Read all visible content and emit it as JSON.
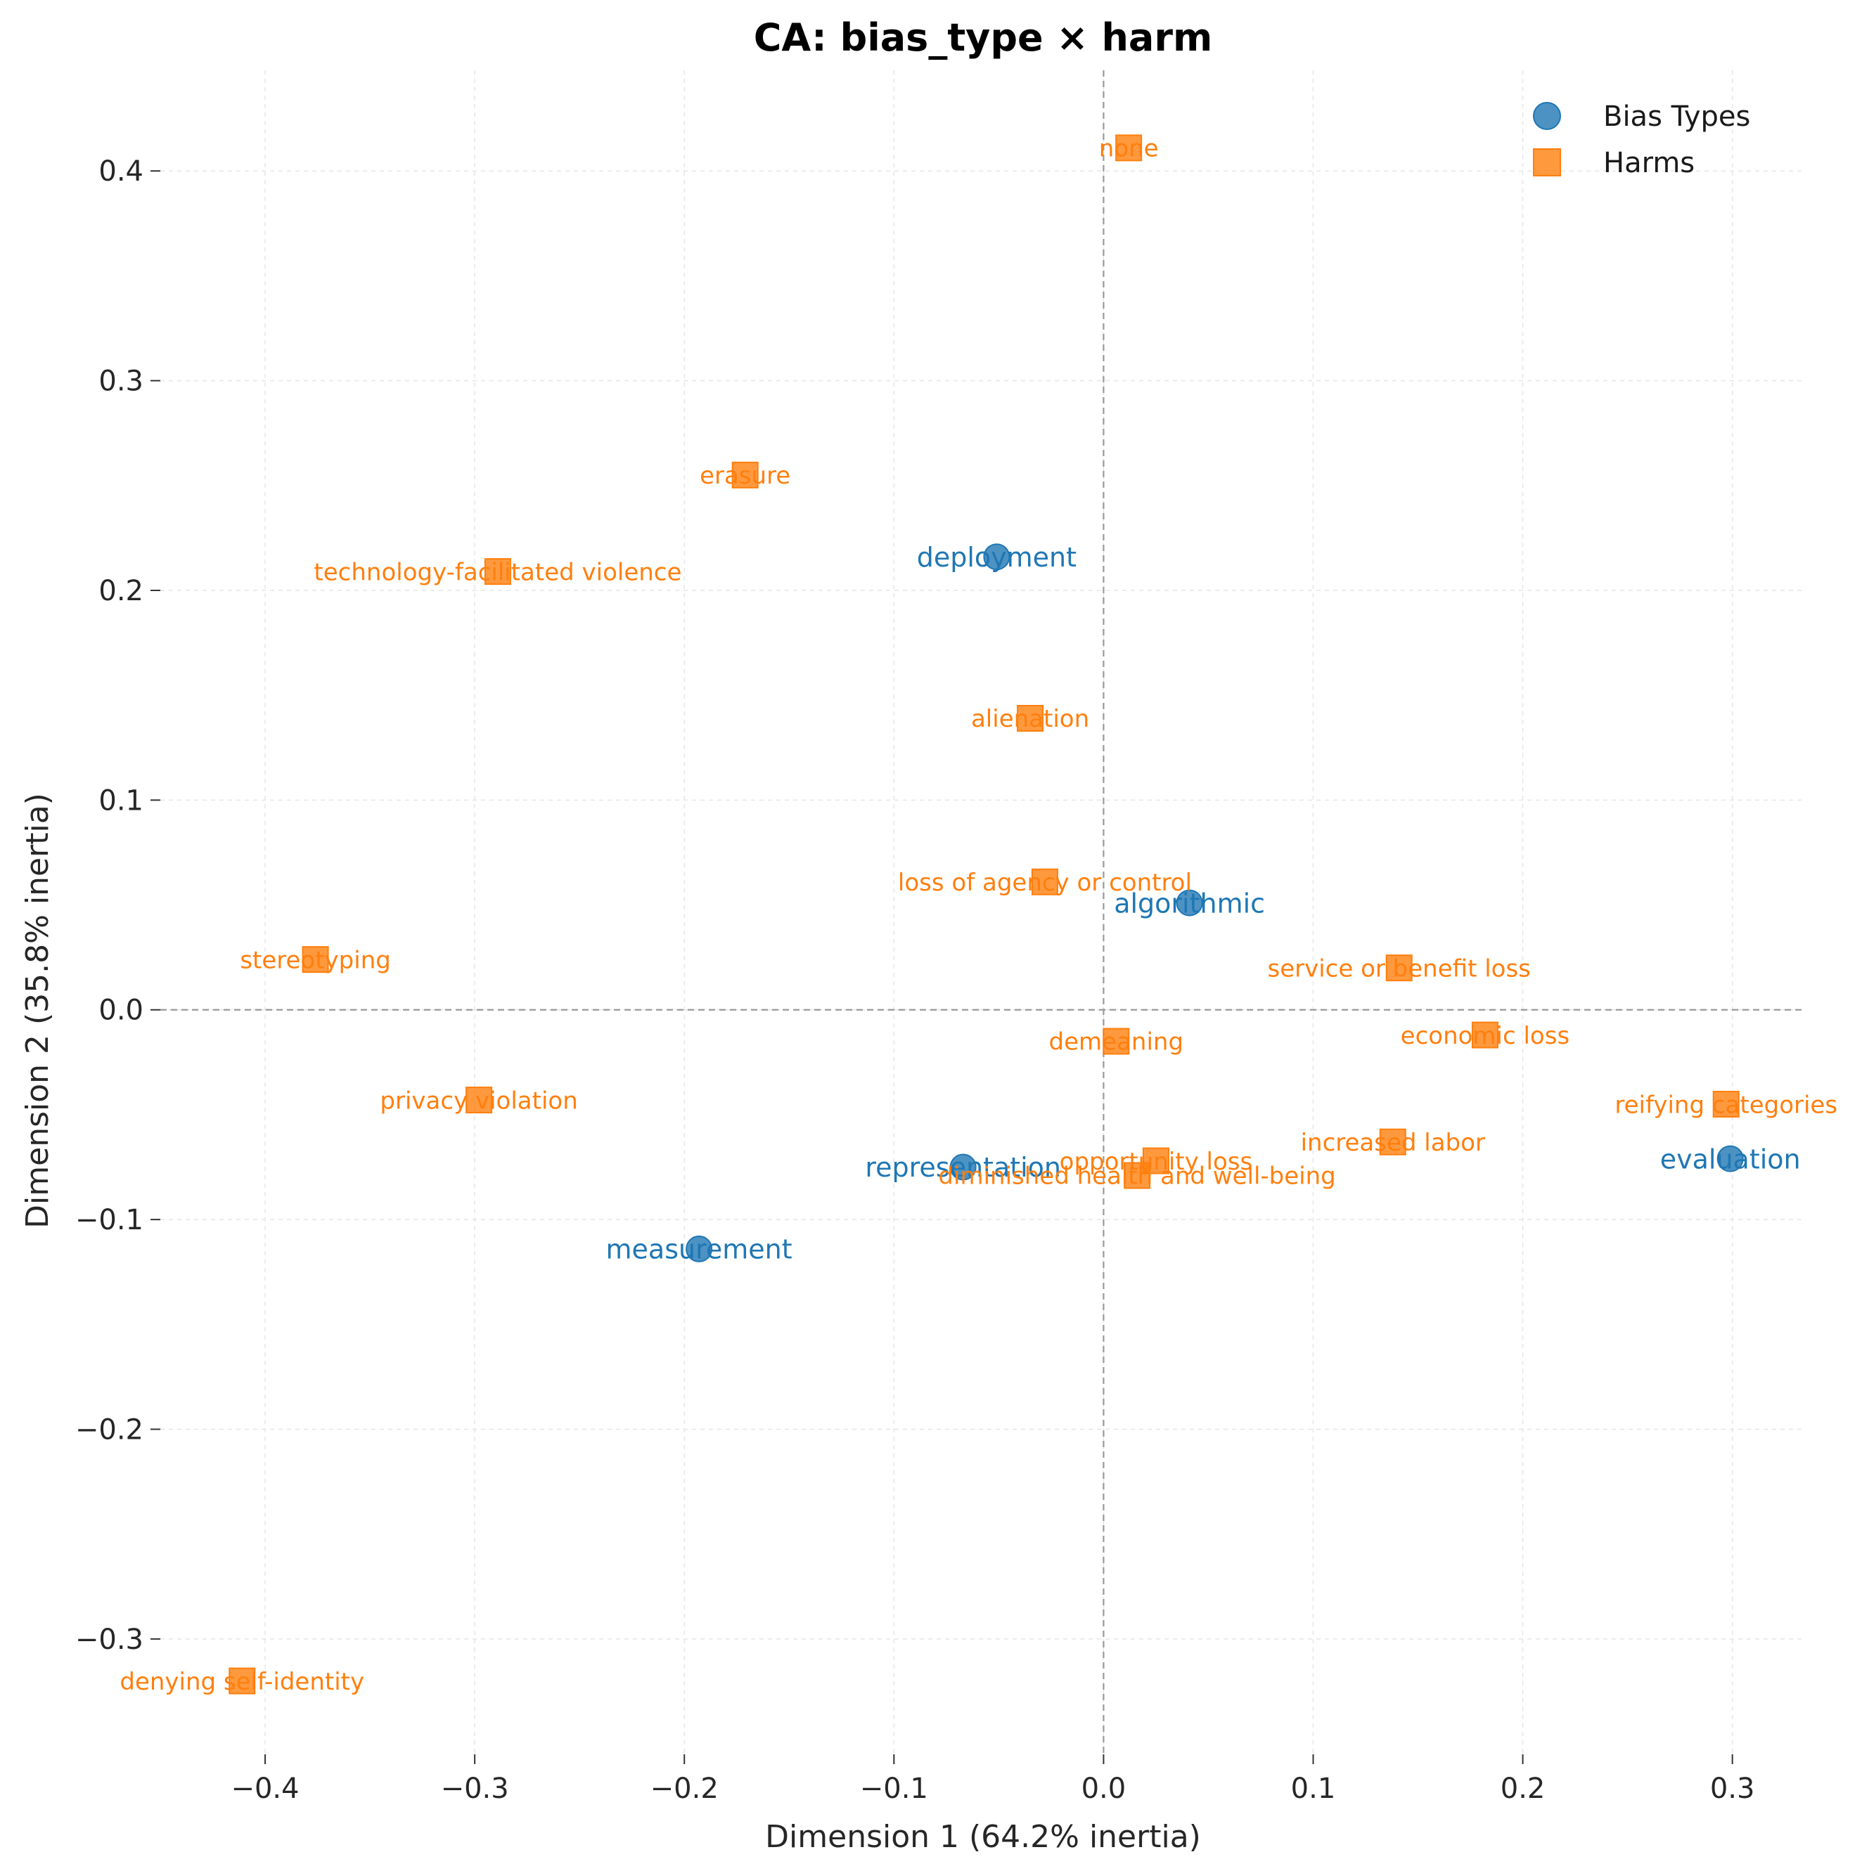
{
  "chart_data": {
    "type": "scatter",
    "title": "CA: bias_type × harm",
    "xlabel": "Dimension 1 (64.2% inertia)",
    "ylabel": "Dimension 2 (35.8% inertia)",
    "xlim": [
      -0.45,
      0.335
    ],
    "ylim": [
      -0.355,
      0.448
    ],
    "xticks": [
      -0.4,
      -0.3,
      -0.2,
      -0.1,
      0.0,
      0.1,
      0.2,
      0.3
    ],
    "xtick_labels": [
      "−0.4",
      "−0.3",
      "−0.2",
      "−0.1",
      "0.0",
      "0.1",
      "0.2",
      "0.3"
    ],
    "yticks": [
      -0.3,
      -0.2,
      -0.1,
      0.0,
      0.1,
      0.2,
      0.3,
      0.4
    ],
    "ytick_labels": [
      "−0.3",
      "−0.2",
      "−0.1",
      "0.0",
      "0.1",
      "0.2",
      "0.3",
      "0.4"
    ],
    "grid": true,
    "reference_lines": {
      "x": 0,
      "y": 0
    },
    "legend_position": "top-right",
    "series": [
      {
        "name": "Bias Types",
        "marker": "circle",
        "color": "#1f77b4",
        "points": [
          {
            "label": "deployment",
            "x": -0.051,
            "y": 0.216
          },
          {
            "label": "algorithmic",
            "x": 0.041,
            "y": 0.051
          },
          {
            "label": "evaluation",
            "x": 0.299,
            "y": -0.071
          },
          {
            "label": "representation",
            "x": -0.067,
            "y": -0.075
          },
          {
            "label": "measurement",
            "x": -0.193,
            "y": -0.114
          }
        ]
      },
      {
        "name": "Harms",
        "marker": "square",
        "color": "#ff7f0e",
        "points": [
          {
            "label": "none",
            "x": 0.012,
            "y": 0.411
          },
          {
            "label": "erasure",
            "x": -0.171,
            "y": 0.255
          },
          {
            "label": "technology-facilitated violence",
            "x": -0.289,
            "y": 0.209
          },
          {
            "label": "alienation",
            "x": -0.035,
            "y": 0.139
          },
          {
            "label": "loss of agency or control",
            "x": -0.028,
            "y": 0.061
          },
          {
            "label": "stereotyping",
            "x": -0.376,
            "y": 0.024
          },
          {
            "label": "service or benefit loss",
            "x": 0.141,
            "y": 0.02
          },
          {
            "label": "demeaning",
            "x": 0.006,
            "y": -0.015
          },
          {
            "label": "economic loss",
            "x": 0.182,
            "y": -0.012
          },
          {
            "label": "privacy violation",
            "x": -0.298,
            "y": -0.043
          },
          {
            "label": "reifying categories",
            "x": 0.297,
            "y": -0.045
          },
          {
            "label": "increased labor",
            "x": 0.138,
            "y": -0.063
          },
          {
            "label": "opportunity loss",
            "x": 0.025,
            "y": -0.072
          },
          {
            "label": "diminished health and well-being",
            "x": 0.016,
            "y": -0.079
          },
          {
            "label": "denying self-identity",
            "x": -0.411,
            "y": -0.32
          }
        ]
      }
    ]
  }
}
